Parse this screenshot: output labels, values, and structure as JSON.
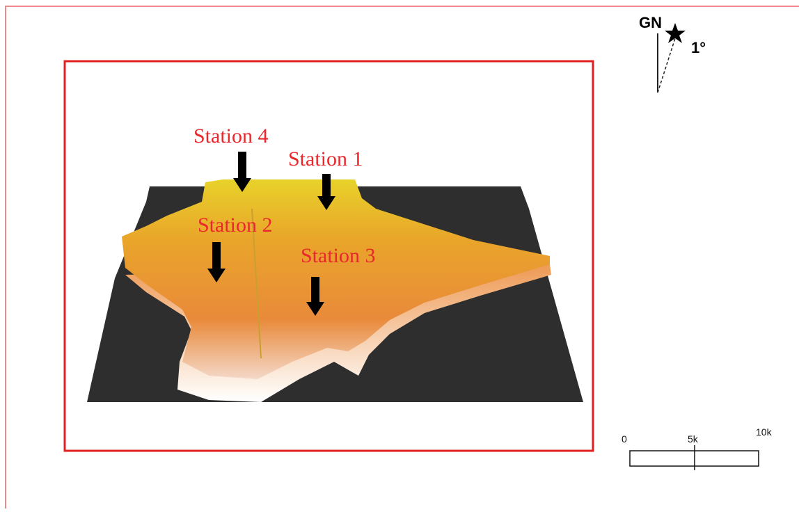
{
  "north_arrow": {
    "label": "GN",
    "declination": "1°"
  },
  "stations": [
    {
      "label": "Station 4"
    },
    {
      "label": "Station 1"
    },
    {
      "label": "Station 2"
    },
    {
      "label": "Station 3"
    }
  ],
  "scale_bar": {
    "labels": [
      "0",
      "5k",
      "10k"
    ]
  }
}
